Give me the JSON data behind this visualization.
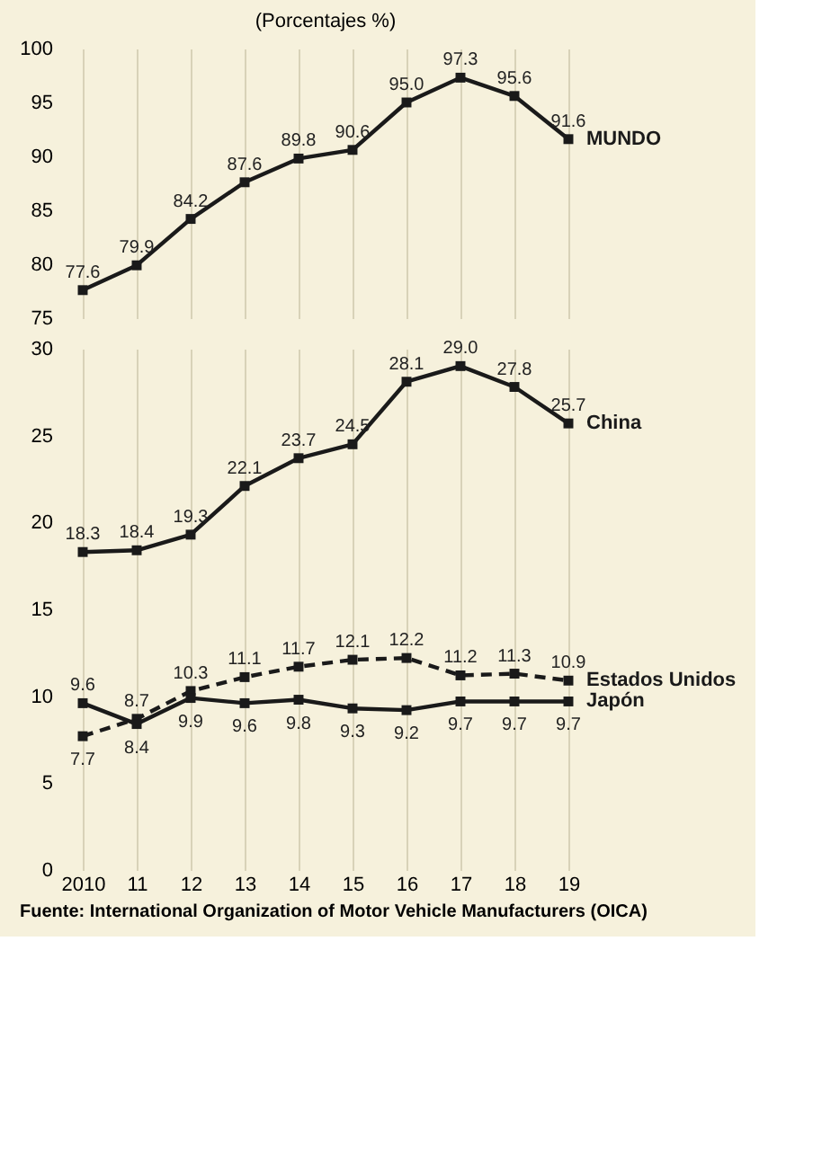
{
  "chart_data": [
    {
      "type": "line",
      "subtitle": "(Porcentajes %)",
      "categories": [
        "2010",
        "11",
        "12",
        "13",
        "14",
        "15",
        "16",
        "17",
        "18",
        "19"
      ],
      "ylim": [
        75,
        100
      ],
      "yticks": [
        75,
        80,
        85,
        90,
        95,
        100
      ],
      "grid": "x",
      "tick_labels": "y",
      "marker": "square",
      "series": [
        {
          "name": "MUNDO",
          "color": "#1a1a1a",
          "line_style": "solid",
          "values": [
            77.6,
            79.9,
            84.2,
            87.6,
            89.8,
            90.6,
            95.0,
            97.3,
            95.6,
            91.6
          ],
          "value_labels": [
            "77.6",
            "79.9",
            "84.2",
            "87.6",
            "89.8",
            "90.6",
            "95.0",
            "97.3",
            "95.6",
            "91.6"
          ]
        }
      ]
    },
    {
      "type": "line",
      "categories": [
        "2010",
        "11",
        "12",
        "13",
        "14",
        "15",
        "16",
        "17",
        "18",
        "19"
      ],
      "ylim": [
        0,
        30
      ],
      "yticks": [
        0,
        5,
        10,
        15,
        20,
        25,
        30
      ],
      "grid": "x",
      "marker": "square",
      "annotations": [
        "Fuente: International Organization of Motor Vehicle Manufacturers (OICA)"
      ],
      "series": [
        {
          "name": "China",
          "color": "#1a1a1a",
          "line_style": "solid",
          "values": [
            18.3,
            18.4,
            19.3,
            22.1,
            23.7,
            24.5,
            28.1,
            29.0,
            27.8,
            25.7
          ],
          "value_labels": [
            "18.3",
            "18.4",
            "19.3",
            "22.1",
            "23.7",
            "24.5",
            "28.1",
            "29.0",
            "27.8",
            "25.7"
          ]
        },
        {
          "name": "Estados Unidos",
          "color": "#1a1a1a",
          "line_style": "dashed",
          "values": [
            7.7,
            8.7,
            10.3,
            11.1,
            11.7,
            12.1,
            12.2,
            11.2,
            11.3,
            10.9
          ],
          "value_labels": [
            "7.7",
            "8.7",
            "10.3",
            "11.1",
            "11.7",
            "12.1",
            "12.2",
            "11.2",
            "11.3",
            "10.9"
          ]
        },
        {
          "name": "Japón",
          "color": "#1a1a1a",
          "line_style": "solid",
          "values": [
            9.6,
            8.4,
            9.9,
            9.6,
            9.8,
            9.3,
            9.2,
            9.7,
            9.7,
            9.7
          ],
          "value_labels": [
            "9.6",
            "8.4",
            "9.9",
            "9.6",
            "9.8",
            "9.3",
            "9.2",
            "9.7",
            "9.7",
            "9.7"
          ]
        }
      ]
    }
  ]
}
